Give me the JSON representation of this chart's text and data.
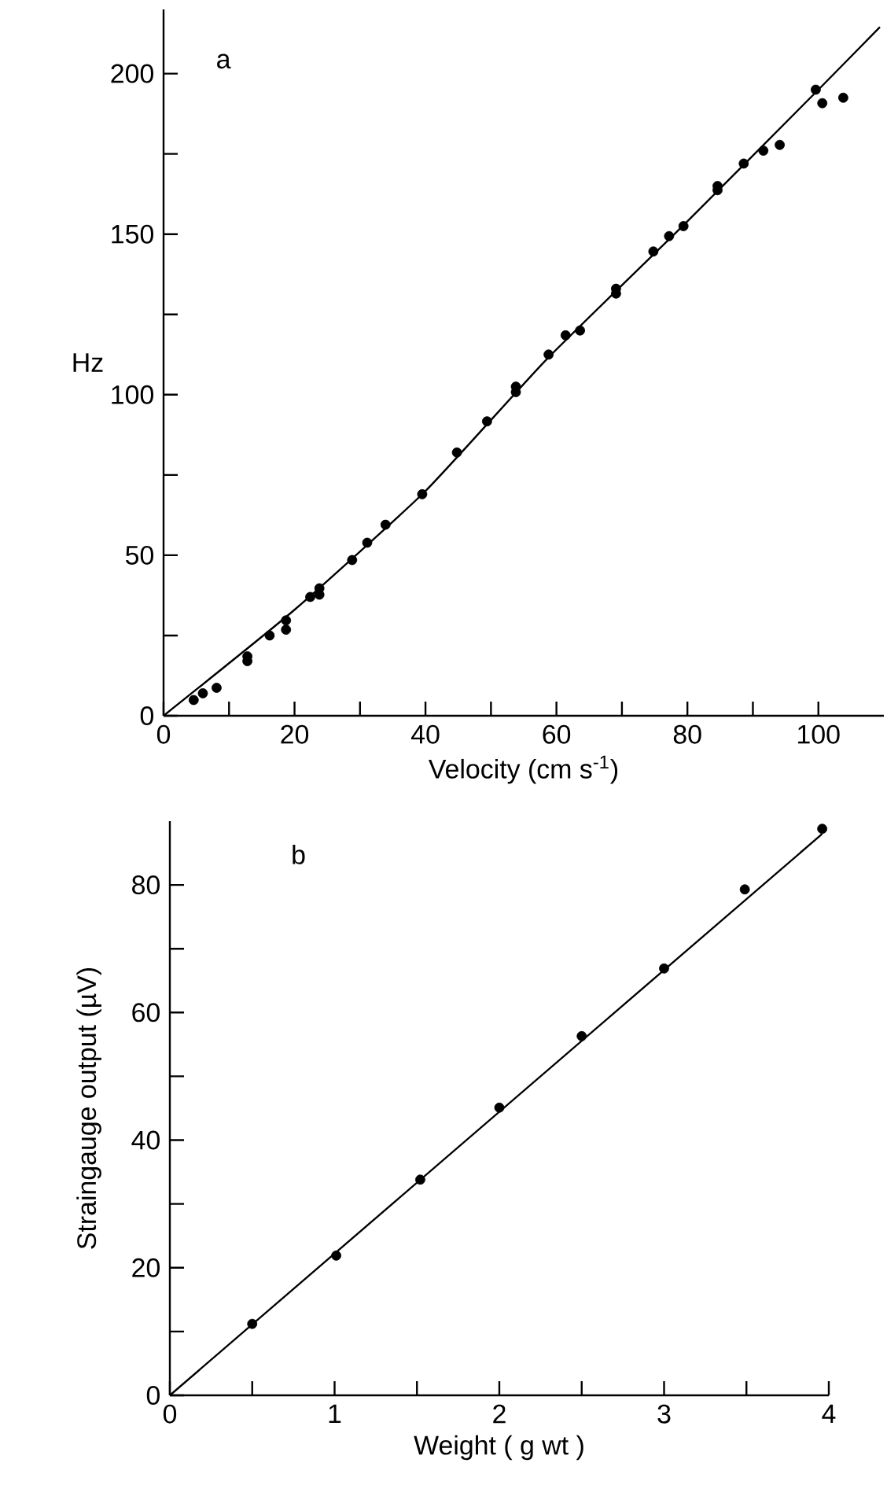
{
  "chart_data": [
    {
      "type": "scatter",
      "xlabel": "Velocity (cm s$^{-1}$)",
      "ylabel": "Hz",
      "annotations": [
        "a"
      ],
      "xlim": [
        0,
        110
      ],
      "ylim": [
        0,
        220
      ],
      "xticks": [
        0,
        {
          "value": 10,
          "label": null
        },
        20,
        {
          "value": 30,
          "label": null
        },
        40,
        {
          "value": 50,
          "label": null
        },
        60,
        {
          "value": 70,
          "label": null
        },
        80,
        {
          "value": 90,
          "label": null
        },
        100
      ],
      "yticks": [
        0,
        {
          "value": 25,
          "label": null
        },
        50,
        {
          "value": 75,
          "label": null
        },
        100,
        {
          "value": 125,
          "label": null
        },
        150,
        {
          "value": 175,
          "label": null
        },
        200
      ],
      "series": [
        {
          "color": "#000000",
          "marker": "circle",
          "x": [
            4.6,
            6,
            8.1,
            12.8,
            12.8,
            16.2,
            18.7,
            18.7,
            22.4,
            23.8,
            23.8,
            28.8,
            31.1,
            33.9,
            39.5,
            44.8,
            49.4,
            53.8,
            53.8,
            58.8,
            61.4,
            63.6,
            69.1,
            69.1,
            74.8,
            77.2,
            79.4,
            84.6,
            84.6,
            88.6,
            91.6,
            94.1,
            99.6,
            100.6,
            103.8
          ],
          "values": [
            4.9,
            7,
            8.7,
            18.5,
            17,
            25,
            29.7,
            26.8,
            37,
            37.7,
            39.7,
            48.5,
            53.9,
            59.5,
            69,
            82,
            91.7,
            100.8,
            102.5,
            112.5,
            118.5,
            120,
            133,
            131.5,
            144.6,
            149.4,
            152.5,
            165,
            163.7,
            172,
            176,
            177.8,
            195,
            190.8,
            192.5
          ]
        },
        {
          "type": "line",
          "color": "#000000",
          "marker": "none",
          "x": [
            0,
            20,
            40,
            58.5,
            80,
            100,
            109.4
          ],
          "values": [
            0,
            33,
            70,
            111,
            154,
            195,
            214.5
          ]
        }
      ]
    },
    {
      "type": "scatter",
      "xlabel": "Weight  ( g wt )",
      "ylabel": "Straingauge  output (µV)",
      "annotations": [
        "b"
      ],
      "xlim": [
        0,
        4
      ],
      "ylim": [
        0,
        90
      ],
      "xticks": [
        0,
        {
          "value": 0.5,
          "label": null
        },
        1,
        {
          "value": 1.5,
          "label": null
        },
        2,
        {
          "value": 2.5,
          "label": null
        },
        3,
        {
          "value": 3.5,
          "label": null
        },
        4
      ],
      "yticks": [
        0,
        {
          "value": 10,
          "label": null
        },
        20,
        {
          "value": 30,
          "label": null
        },
        40,
        {
          "value": 50,
          "label": null
        },
        60,
        {
          "value": 70,
          "label": null
        },
        80
      ],
      "series": [
        {
          "color": "#000000",
          "marker": "circle",
          "x": [
            0.5,
            1.01,
            1.52,
            2.0,
            2.5,
            3.0,
            3.49,
            3.96
          ],
          "values": [
            11.2,
            21.9,
            33.8,
            45.1,
            56.3,
            66.9,
            79.3,
            88.8
          ]
        },
        {
          "type": "line",
          "color": "#000000",
          "marker": "none",
          "x": [
            0,
            3.96
          ],
          "values": [
            0,
            88
          ]
        }
      ]
    }
  ]
}
